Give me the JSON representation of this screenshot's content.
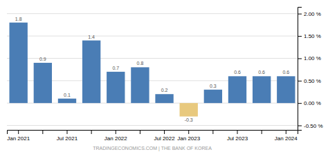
{
  "chart_data": {
    "type": "bar",
    "categories": [
      "Jan 2021",
      null,
      "Jul 2021",
      null,
      "Jan 2022",
      null,
      "Jul 2022",
      "Jan 2023",
      null,
      "Jul 2023",
      null,
      "Jan 2024"
    ],
    "values": [
      1.8,
      0.9,
      0.1,
      1.4,
      0.7,
      0.8,
      0.2,
      -0.3,
      0.3,
      0.6,
      0.6,
      0.6
    ],
    "colors": [
      "#4a7db5",
      "#4a7db5",
      "#4a7db5",
      "#4a7db5",
      "#4a7db5",
      "#4a7db5",
      "#4a7db5",
      "#e8c97e",
      "#4a7db5",
      "#4a7db5",
      "#4a7db5",
      "#4a7db5"
    ],
    "ylim": [
      -0.6,
      2.15
    ],
    "yticks": [
      {
        "value": -0.5,
        "label": "-0.50 %"
      },
      {
        "value": 0.0,
        "label": "0.00 %"
      },
      {
        "value": 0.5,
        "label": "0.50 %"
      },
      {
        "value": 1.0,
        "label": "1.00 %"
      },
      {
        "value": 1.5,
        "label": "1.50 %"
      },
      {
        "value": 2.0,
        "label": "2.00 %"
      }
    ],
    "grid": true,
    "data_labels": true,
    "annotations": [
      "TRADINGECONOMICS.COM | THE BANK OF KOREA"
    ]
  }
}
